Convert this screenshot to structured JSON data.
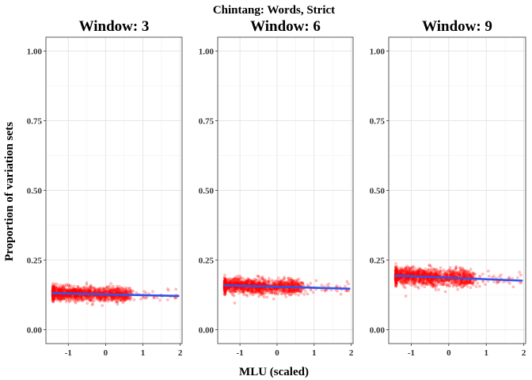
{
  "chart_data": {
    "type": "scatter",
    "title": "Chintang: Words, Strict",
    "xlabel": "MLU (scaled)",
    "ylabel": "Proportion of variation sets",
    "xlim": [
      -1.6,
      2.05
    ],
    "ylim": [
      -0.05,
      1.05
    ],
    "x_ticks": [
      -1,
      0,
      1,
      2
    ],
    "y_ticks": [
      0.0,
      0.25,
      0.5,
      0.75,
      1.0
    ],
    "x_tick_labels": [
      "-1",
      "0",
      "1",
      "2"
    ],
    "y_tick_labels": [
      "0.00",
      "0.25",
      "0.50",
      "0.75",
      "1.00"
    ],
    "grid": true,
    "point_color": "#ff0000",
    "line_color": "#3355ee",
    "panels": [
      {
        "title": "Window: 3",
        "fit": {
          "x": [
            -1.42,
            1.95
          ],
          "y": [
            0.131,
            0.121
          ]
        },
        "cloud": {
          "y_center": 0.127,
          "y_spread": 0.012,
          "x_min": -1.42,
          "x_max": 1.95
        }
      },
      {
        "title": "Window: 6",
        "fit": {
          "x": [
            -1.42,
            1.95
          ],
          "y": [
            0.159,
            0.147
          ]
        },
        "cloud": {
          "y_center": 0.156,
          "y_spread": 0.013,
          "x_min": -1.42,
          "x_max": 1.95
        }
      },
      {
        "title": "Window: 9",
        "fit": {
          "x": [
            -1.42,
            1.95
          ],
          "y": [
            0.194,
            0.176
          ]
        },
        "cloud": {
          "y_center": 0.19,
          "y_spread": 0.015,
          "x_min": -1.42,
          "x_max": 1.95
        }
      }
    ]
  }
}
